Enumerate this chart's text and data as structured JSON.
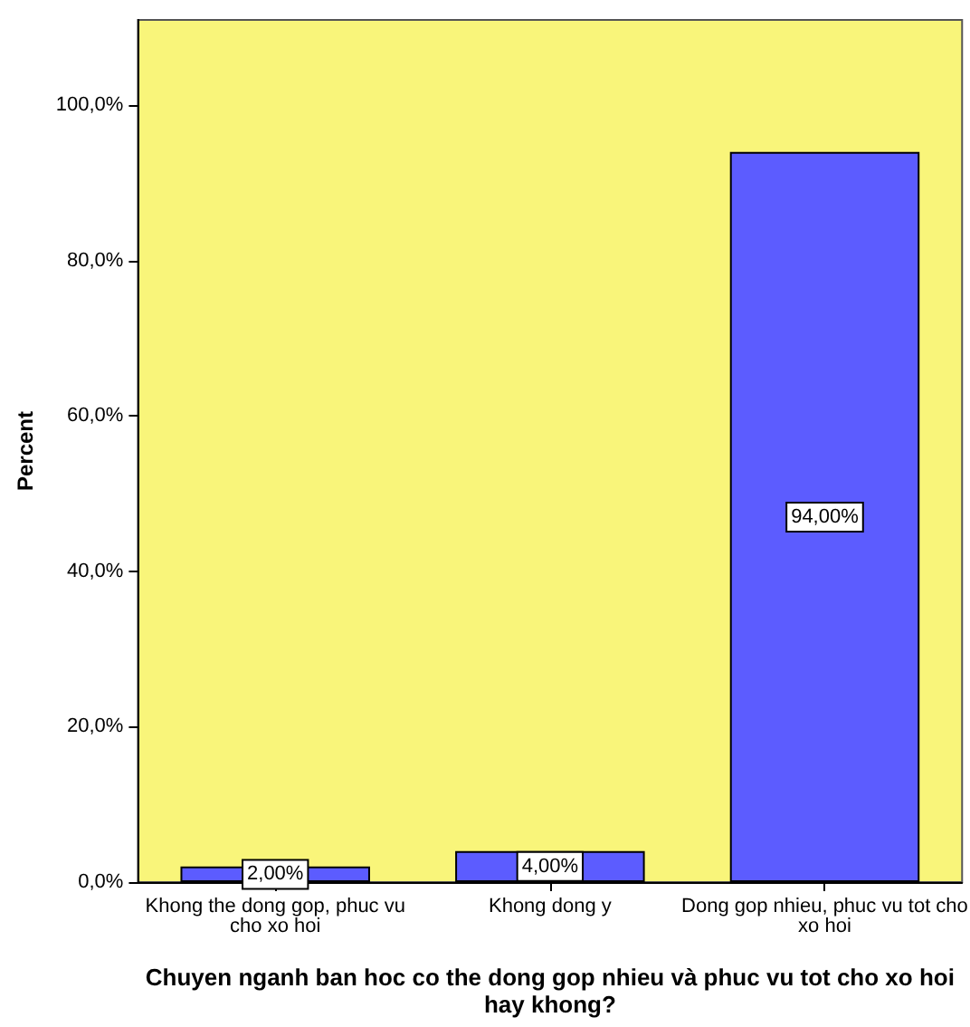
{
  "chart_data": {
    "type": "bar",
    "xlabel": "Chuyen nganh ban hoc co the dong gop nhieu và phuc vu tot cho xo hoi\nhay khong?",
    "ylabel": "Percent",
    "categories": [
      "Khong the dong gop, phuc vu\ncho xo hoi",
      "Khong dong y",
      "Dong gop nhieu, phuc vu tot cho\nxo hoi"
    ],
    "values": [
      2,
      4,
      94
    ],
    "color": "#5c5cff",
    "value_labels": [
      "2,00%",
      "4,00%",
      "94,00%"
    ],
    "ylim": [
      0,
      111
    ],
    "yticks": [
      {
        "value": 0,
        "label": "0,0%"
      },
      {
        "value": 20,
        "label": "20,0%"
      },
      {
        "value": 40,
        "label": "40,0%"
      },
      {
        "value": 60,
        "label": "60,0%"
      },
      {
        "value": 80,
        "label": "80,0%"
      },
      {
        "value": 100,
        "label": "100,0%"
      }
    ],
    "grid": false
  }
}
